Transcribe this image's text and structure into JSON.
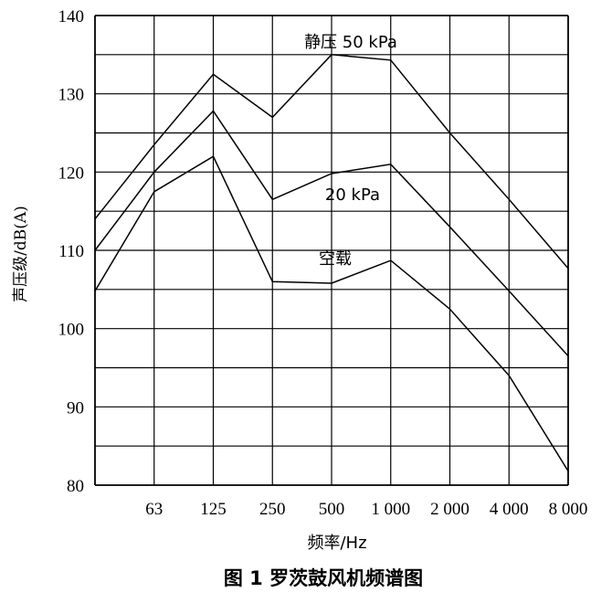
{
  "chart_data": {
    "type": "line",
    "xlabel": "频率/Hz",
    "ylabel": "声压级/dB(A)",
    "caption": "图 1  罗茨鼓风机频谱图",
    "categories": [
      "",
      "63",
      "125",
      "250",
      "500",
      "1 000",
      "2 000",
      "4 000",
      "8 000"
    ],
    "ylim": [
      80,
      140
    ],
    "yticks": [
      80,
      90,
      100,
      110,
      120,
      130,
      140
    ],
    "grid": true,
    "series": [
      {
        "name": "静压 50 kPa",
        "values": [
          114,
          123.5,
          132.5,
          127,
          135,
          134.3,
          125,
          116.5,
          107.7
        ]
      },
      {
        "name": "20 kPa",
        "values": [
          110,
          120,
          127.8,
          116.5,
          119.8,
          121,
          113,
          104.8,
          96.5
        ]
      },
      {
        "name": "空载",
        "values": [
          104.8,
          117.5,
          122,
          106,
          105.8,
          108.7,
          102.5,
          94,
          81.8
        ]
      }
    ]
  }
}
